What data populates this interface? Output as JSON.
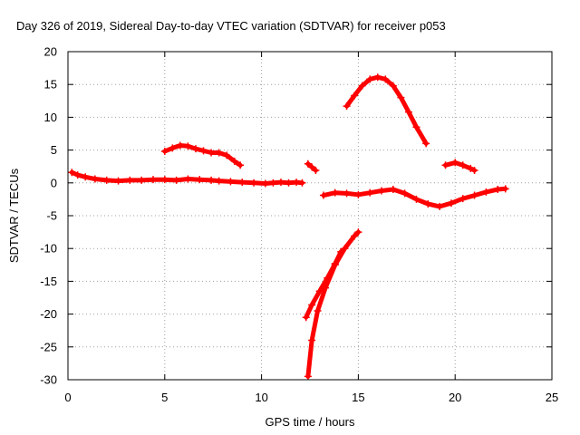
{
  "chart_data": {
    "type": "scatter",
    "title": "Day 326 of 2019, Sidereal Day-to-day VTEC variation (SDTVAR) for receiver p053",
    "xlabel": "GPS time / hours",
    "ylabel": "SDTVAR / TECUs",
    "xlim": [
      0,
      25
    ],
    "ylim": [
      -30,
      20
    ],
    "xticks": [
      0,
      5,
      10,
      15,
      20,
      25
    ],
    "yticks": [
      -30,
      -25,
      -20,
      -15,
      -10,
      -5,
      0,
      5,
      10,
      15,
      20
    ],
    "grid": true,
    "marker": "plus",
    "color": "#ff0000",
    "series": [
      {
        "name": "track-main",
        "points": [
          [
            0.2,
            1.6
          ],
          [
            0.5,
            1.2
          ],
          [
            0.9,
            0.9
          ],
          [
            1.4,
            0.6
          ],
          [
            2.0,
            0.4
          ],
          [
            2.6,
            0.3
          ],
          [
            3.2,
            0.4
          ],
          [
            3.8,
            0.4
          ],
          [
            4.4,
            0.5
          ],
          [
            5.0,
            0.5
          ],
          [
            5.6,
            0.4
          ],
          [
            6.2,
            0.6
          ],
          [
            6.8,
            0.5
          ],
          [
            7.4,
            0.4
          ],
          [
            7.8,
            0.3
          ],
          [
            8.4,
            0.2
          ],
          [
            9.0,
            0.1
          ],
          [
            9.6,
            0.0
          ],
          [
            10.2,
            -0.1
          ],
          [
            10.6,
            0.0
          ],
          [
            11.0,
            0.1
          ],
          [
            11.4,
            0.0
          ],
          [
            11.8,
            0.1
          ],
          [
            12.1,
            0.0
          ]
        ]
      },
      {
        "name": "track-main-2",
        "points": [
          [
            13.2,
            -1.9
          ],
          [
            13.8,
            -1.5
          ],
          [
            14.4,
            -1.6
          ],
          [
            15.0,
            -1.8
          ],
          [
            15.6,
            -1.5
          ],
          [
            16.2,
            -1.2
          ],
          [
            16.8,
            -1.0
          ],
          [
            17.4,
            -1.6
          ],
          [
            18.0,
            -2.5
          ],
          [
            18.6,
            -3.2
          ],
          [
            19.2,
            -3.6
          ],
          [
            19.8,
            -3.1
          ],
          [
            20.4,
            -2.4
          ],
          [
            21.0,
            -1.9
          ],
          [
            21.6,
            -1.4
          ],
          [
            22.2,
            -1.0
          ],
          [
            22.6,
            -0.9
          ]
        ]
      },
      {
        "name": "track-upper",
        "points": [
          [
            5.0,
            4.8
          ],
          [
            5.4,
            5.3
          ],
          [
            5.8,
            5.7
          ],
          [
            6.2,
            5.6
          ],
          [
            6.6,
            5.2
          ],
          [
            7.0,
            4.9
          ],
          [
            7.4,
            4.6
          ],
          [
            7.8,
            4.6
          ],
          [
            8.2,
            4.2
          ],
          [
            8.6,
            3.3
          ],
          [
            8.9,
            2.7
          ]
        ]
      },
      {
        "name": "track-arc",
        "points": [
          [
            14.4,
            11.7
          ],
          [
            14.8,
            13.3
          ],
          [
            15.2,
            14.8
          ],
          [
            15.6,
            15.8
          ],
          [
            16.0,
            16.1
          ],
          [
            16.4,
            15.8
          ],
          [
            16.8,
            14.8
          ],
          [
            17.2,
            13.0
          ],
          [
            17.6,
            10.8
          ],
          [
            18.0,
            8.5
          ],
          [
            18.5,
            6.0
          ]
        ]
      },
      {
        "name": "track-small-1",
        "points": [
          [
            12.4,
            2.9
          ],
          [
            12.6,
            2.4
          ],
          [
            12.8,
            1.9
          ]
        ]
      },
      {
        "name": "track-small-2",
        "points": [
          [
            19.5,
            2.7
          ],
          [
            20.0,
            3.1
          ],
          [
            20.4,
            2.7
          ],
          [
            20.8,
            2.2
          ],
          [
            21.0,
            1.9
          ]
        ]
      },
      {
        "name": "track-plunge-1",
        "points": [
          [
            12.4,
            -29.5
          ],
          [
            12.6,
            -24.0
          ],
          [
            12.9,
            -19.5
          ],
          [
            13.3,
            -16.0
          ],
          [
            13.8,
            -12.5
          ],
          [
            14.3,
            -10.0
          ],
          [
            14.8,
            -8.1
          ],
          [
            15.0,
            -7.5
          ]
        ]
      },
      {
        "name": "track-plunge-2",
        "points": [
          [
            12.3,
            -20.5
          ],
          [
            12.6,
            -18.6
          ],
          [
            13.0,
            -16.5
          ],
          [
            13.4,
            -14.5
          ],
          [
            13.8,
            -12.3
          ],
          [
            14.1,
            -10.5
          ]
        ]
      }
    ]
  }
}
